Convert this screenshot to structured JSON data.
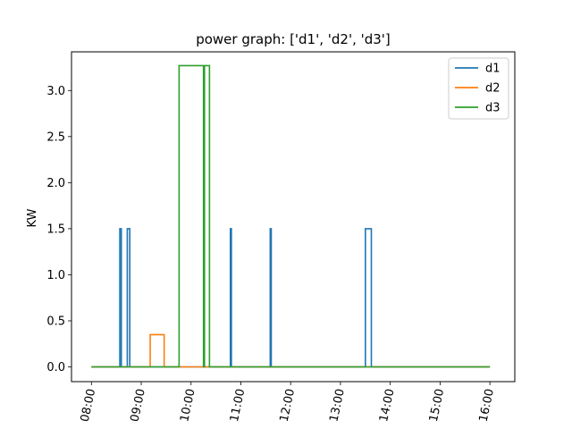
{
  "chart_data": {
    "type": "line",
    "title": "power graph: ['d1', 'd2', 'd3']",
    "xlabel": "",
    "ylabel": "KW",
    "x_unit": "hours",
    "xlim": [
      7.6,
      16.5
    ],
    "ylim": [
      -0.16,
      3.42
    ],
    "x_ticks": [
      {
        "value": 8,
        "label": "08:00"
      },
      {
        "value": 9,
        "label": "09:00"
      },
      {
        "value": 10,
        "label": "10:00"
      },
      {
        "value": 11,
        "label": "11:00"
      },
      {
        "value": 12,
        "label": "12:00"
      },
      {
        "value": 13,
        "label": "13:00"
      },
      {
        "value": 14,
        "label": "14:00"
      },
      {
        "value": 15,
        "label": "15:00"
      },
      {
        "value": 16,
        "label": "16:00"
      }
    ],
    "y_ticks": [
      {
        "value": 0.0,
        "label": "0.0"
      },
      {
        "value": 0.5,
        "label": "0.5"
      },
      {
        "value": 1.0,
        "label": "1.0"
      },
      {
        "value": 1.5,
        "label": "1.5"
      },
      {
        "value": 2.0,
        "label": "2.0"
      },
      {
        "value": 2.5,
        "label": "2.5"
      },
      {
        "value": 3.0,
        "label": "3.0"
      }
    ],
    "legend_position": "top-right",
    "series": [
      {
        "name": "d1",
        "color": "#1f77b4",
        "points": [
          [
            8.0,
            0
          ],
          [
            8.57,
            0
          ],
          [
            8.57,
            1.5
          ],
          [
            8.6,
            1.5
          ],
          [
            8.6,
            0
          ],
          [
            8.72,
            0
          ],
          [
            8.72,
            1.5
          ],
          [
            8.77,
            1.5
          ],
          [
            8.77,
            0
          ],
          [
            10.79,
            0
          ],
          [
            10.79,
            1.5
          ],
          [
            10.81,
            1.5
          ],
          [
            10.81,
            0
          ],
          [
            11.59,
            0
          ],
          [
            11.59,
            1.5
          ],
          [
            11.61,
            1.5
          ],
          [
            11.61,
            0
          ],
          [
            13.5,
            0
          ],
          [
            13.5,
            1.5
          ],
          [
            13.62,
            1.5
          ],
          [
            13.62,
            0
          ],
          [
            16.0,
            0
          ]
        ]
      },
      {
        "name": "d2",
        "color": "#ff7f0e",
        "points": [
          [
            8.0,
            0
          ],
          [
            9.18,
            0
          ],
          [
            9.18,
            0.35
          ],
          [
            9.46,
            0.35
          ],
          [
            9.46,
            0
          ],
          [
            16.0,
            0
          ]
        ]
      },
      {
        "name": "d3",
        "color": "#2ca02c",
        "points": [
          [
            8.0,
            0
          ],
          [
            9.76,
            0
          ],
          [
            9.76,
            3.27
          ],
          [
            10.25,
            3.27
          ],
          [
            10.25,
            0
          ],
          [
            10.27,
            0
          ],
          [
            10.27,
            3.27
          ],
          [
            10.37,
            3.27
          ],
          [
            10.37,
            0
          ],
          [
            16.0,
            0
          ]
        ]
      }
    ]
  }
}
